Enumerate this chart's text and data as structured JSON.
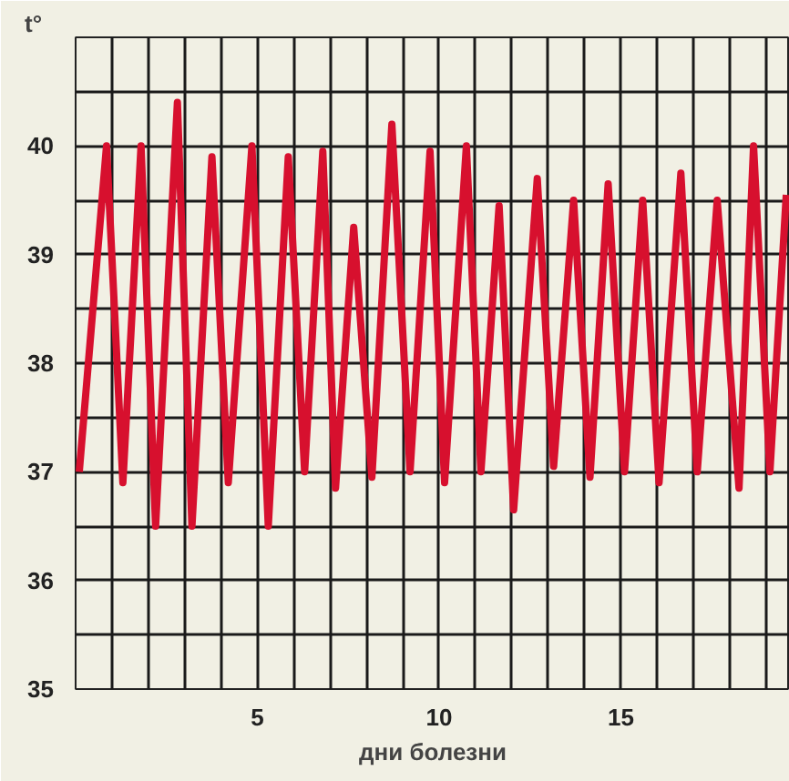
{
  "chart_data": {
    "type": "line",
    "xlabel": "дни болезни",
    "ylabel": "t°",
    "series": [
      {
        "color": "#d7102e",
        "x": [
          0.1,
          0.85,
          1.3,
          1.8,
          2.2,
          2.8,
          3.2,
          3.75,
          4.2,
          4.85,
          5.3,
          5.85,
          6.3,
          6.8,
          7.15,
          7.65,
          8.15,
          8.7,
          9.2,
          9.75,
          10.15,
          10.75,
          11.15,
          11.65,
          12.05,
          12.7,
          13.15,
          13.7,
          14.15,
          14.65,
          15.1,
          15.6,
          16.05,
          16.65,
          17.1,
          17.65,
          18.25,
          18.65,
          19.1,
          19.55
        ],
        "values": [
          37.0,
          40.0,
          36.9,
          40.0,
          36.5,
          40.4,
          36.5,
          39.9,
          36.9,
          40.0,
          36.5,
          39.9,
          37.0,
          39.95,
          36.85,
          39.25,
          36.95,
          40.2,
          37.0,
          39.95,
          36.9,
          40.0,
          37.0,
          39.45,
          36.65,
          39.7,
          37.05,
          39.5,
          36.95,
          39.65,
          37.0,
          39.5,
          36.9,
          39.75,
          37.0,
          39.5,
          36.85,
          40.0,
          37.0,
          39.55
        ]
      }
    ],
    "xlim": [
      0,
      19.65
    ],
    "ylim": [
      35,
      41
    ],
    "xticks": [
      {
        "value": 0,
        "label": null
      },
      {
        "value": 1,
        "label": null
      },
      {
        "value": 2,
        "label": null
      },
      {
        "value": 3,
        "label": null
      },
      {
        "value": 4,
        "label": null
      },
      5,
      {
        "value": 6,
        "label": null
      },
      {
        "value": 7,
        "label": null
      },
      {
        "value": 8,
        "label": null
      },
      {
        "value": 9,
        "label": null
      },
      10,
      {
        "value": 11,
        "label": null
      },
      {
        "value": 12,
        "label": null
      },
      {
        "value": 13,
        "label": null
      },
      {
        "value": 14,
        "label": null
      },
      15,
      {
        "value": 16,
        "label": null
      },
      {
        "value": 17,
        "label": null
      },
      {
        "value": 18,
        "label": null
      },
      {
        "value": 19,
        "label": null
      }
    ],
    "yticks": [
      35,
      {
        "value": 35.5,
        "label": null
      },
      36,
      {
        "value": 36.5,
        "label": null
      },
      37,
      {
        "value": 37.5,
        "label": null
      },
      38,
      {
        "value": 38.5,
        "label": null
      },
      39,
      {
        "value": 39.5,
        "label": null
      },
      40,
      {
        "value": 40.5,
        "label": null
      },
      {
        "value": 41,
        "label": null
      }
    ],
    "grid": true,
    "marker": "none",
    "line_style": "solid"
  }
}
